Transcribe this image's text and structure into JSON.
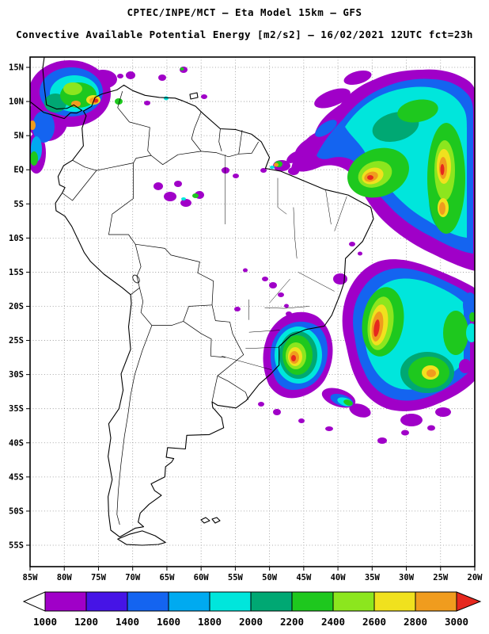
{
  "header": {
    "title_line1": "CPTEC/INPE/MCT —  Eta Model 15km — GFS",
    "title_line2": "Convective Available Potential Energy [m2/s2] — 16/02/2021 12UTC fct=23h"
  },
  "map": {
    "lat_labels": [
      "15N",
      "10N",
      "5N",
      "EQ",
      "5S",
      "10S",
      "15S",
      "20S",
      "25S",
      "30S",
      "35S",
      "40S",
      "45S",
      "50S",
      "55S"
    ],
    "lon_labels": [
      "85W",
      "80W",
      "75W",
      "70W",
      "65W",
      "60W",
      "55W",
      "50W",
      "45W",
      "40W",
      "35W",
      "30W",
      "25W",
      "20W"
    ]
  },
  "colorbar": {
    "tick_labels": [
      "1000",
      "1200",
      "1400",
      "1600",
      "1800",
      "2000",
      "2200",
      "2400",
      "2600",
      "2800",
      "3000"
    ],
    "segment_colors": [
      "#A000C8",
      "#4614E6",
      "#1464F0",
      "#00AAF0",
      "#00E6DC",
      "#00A873",
      "#1EC81E",
      "#8CE61E",
      "#F0E11E",
      "#F09C1E"
    ],
    "left_arrow_color": "#FFFFFF",
    "right_arrow_color": "#E6281E"
  }
}
